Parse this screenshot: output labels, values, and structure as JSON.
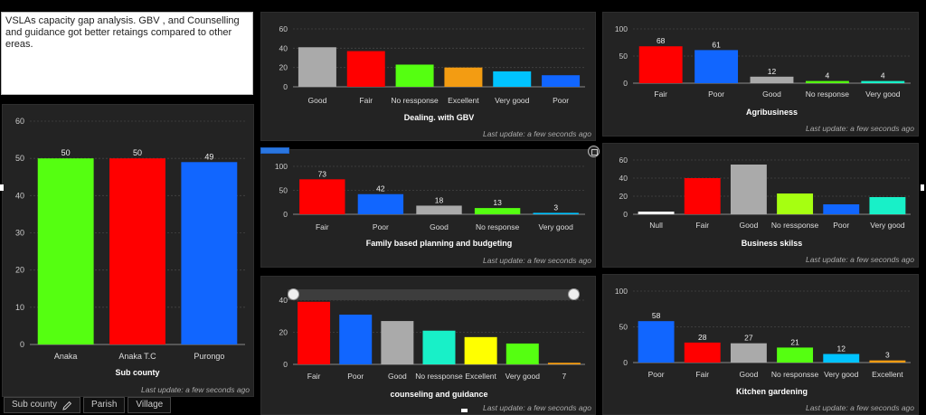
{
  "note": {
    "text": "VSLAs capacity gap analysis.  GBV , and Counselling and guidance got better retaings compared to other ereas."
  },
  "tabs": [
    {
      "label": "Sub county",
      "icon": "pencil-icon"
    },
    {
      "label": "Parish"
    },
    {
      "label": "Village"
    }
  ],
  "last_update": "Last update: a few seconds ago",
  "colors": {
    "green": "#55ff11",
    "red": "#ff0000",
    "blue": "#1166ff",
    "gray": "#aaaaaa",
    "orange": "#f39c12",
    "lightblue": "#00c3ff",
    "teal": "#18f0c8",
    "lime": "#a6ff11",
    "yellow": "#ffff00",
    "white": "#eeeeee",
    "darkblue": "#0a48ff"
  },
  "chart_data": [
    {
      "id": "subcounty",
      "type": "bar",
      "title": "Sub county",
      "categories": [
        "Anaka",
        "Anaka T.C",
        "Purongo"
      ],
      "values": [
        50,
        50,
        49
      ],
      "colors": [
        "green",
        "red",
        "blue"
      ],
      "ylim": [
        0,
        60
      ],
      "yticks": [
        0,
        10,
        20,
        30,
        40,
        50,
        60
      ],
      "show_labels": true,
      "grid": true
    },
    {
      "id": "gbv",
      "type": "bar",
      "title": "Dealing. with GBV",
      "categories": [
        "Good",
        "Fair",
        "No ressponse",
        "Excellent",
        "Very good",
        "Poor"
      ],
      "values": [
        41,
        37,
        23,
        20,
        16,
        12
      ],
      "colors": [
        "gray",
        "red",
        "green",
        "orange",
        "lightblue",
        "blue"
      ],
      "ylim": [
        0,
        60
      ],
      "yticks": [
        0,
        20,
        40,
        60
      ],
      "show_labels": false,
      "grid": true
    },
    {
      "id": "agri",
      "type": "bar",
      "title": "Agribusiness",
      "categories": [
        "Fair",
        "Poor",
        "Good",
        "No response",
        "Very good"
      ],
      "values": [
        68,
        61,
        12,
        4,
        4
      ],
      "colors": [
        "red",
        "blue",
        "gray",
        "green",
        "teal"
      ],
      "ylim": [
        0,
        100
      ],
      "yticks": [
        0,
        50,
        100
      ],
      "show_labels": true,
      "grid": true
    },
    {
      "id": "family",
      "type": "bar",
      "title": "Family based planning and budgeting",
      "categories": [
        "Fair",
        "Poor",
        "Good",
        "No response",
        "Very good"
      ],
      "values": [
        73,
        42,
        18,
        13,
        3
      ],
      "colors": [
        "red",
        "blue",
        "gray",
        "green",
        "lightblue"
      ],
      "ylim": [
        0,
        100
      ],
      "yticks": [
        0,
        50,
        100
      ],
      "show_labels": true,
      "grid": true
    },
    {
      "id": "business",
      "type": "bar",
      "title": "Business skilss",
      "categories": [
        "Null",
        "Fair",
        "Good",
        "No ressponse",
        "Poor",
        "Very good"
      ],
      "values": [
        3,
        40,
        55,
        23,
        11,
        19
      ],
      "colors": [
        "white",
        "red",
        "gray",
        "lime",
        "blue",
        "teal"
      ],
      "ylim": [
        0,
        60
      ],
      "yticks": [
        0,
        20,
        40,
        60
      ],
      "show_labels": false,
      "grid": true
    },
    {
      "id": "counsel",
      "type": "bar",
      "title": "counseling and guidance",
      "categories": [
        "Fair",
        "Poor",
        "Good",
        "No ressponse",
        "Excellent",
        "Very good",
        "7"
      ],
      "values": [
        39,
        31,
        27,
        21,
        17,
        13,
        1
      ],
      "colors": [
        "red",
        "blue",
        "gray",
        "teal",
        "yellow",
        "green",
        "orange"
      ],
      "ylim": [
        0,
        40
      ],
      "yticks": [
        0,
        20,
        40
      ],
      "show_labels": false,
      "grid": true
    },
    {
      "id": "kitchen",
      "type": "bar",
      "title": "Kitchen gardening",
      "categories": [
        "Poor",
        "Fair",
        "Good",
        "No responsse",
        "Very good",
        "Excellent"
      ],
      "values": [
        58,
        28,
        27,
        21,
        12,
        3
      ],
      "colors": [
        "blue",
        "red",
        "gray",
        "green",
        "lightblue",
        "orange"
      ],
      "ylim": [
        0,
        100
      ],
      "yticks": [
        0,
        50,
        100
      ],
      "show_labels": true,
      "grid": true
    }
  ]
}
